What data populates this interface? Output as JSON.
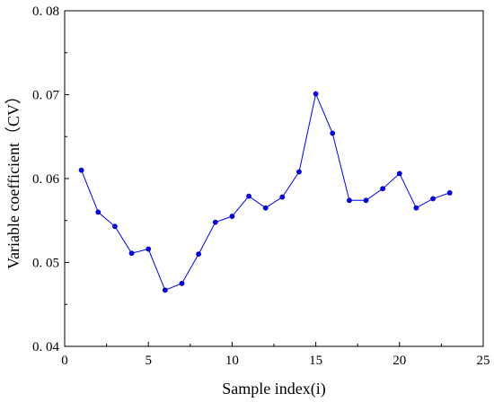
{
  "chart_data": {
    "type": "line",
    "title": "",
    "xlabel": "Sample index(i)",
    "ylabel": "Variable coefficient（CV）",
    "xlim": [
      0,
      25
    ],
    "ylim": [
      0.04,
      0.08
    ],
    "xticks": [
      0,
      5,
      10,
      15,
      20,
      25
    ],
    "xtick_labels": [
      "0",
      "5",
      "10",
      "15",
      "20",
      "25"
    ],
    "yticks": [
      0.04,
      0.05,
      0.06,
      0.07,
      0.08
    ],
    "ytick_labels": [
      "0. 04",
      "0. 05",
      "0. 06",
      "0. 07",
      "0. 08"
    ],
    "grid": false,
    "legend": "none",
    "series": [
      {
        "color": "#0000ff",
        "marker": "circle",
        "x": [
          1,
          2,
          3,
          4,
          5,
          6,
          7,
          8,
          9,
          10,
          11,
          12,
          13,
          14,
          15,
          16,
          17,
          18,
          19,
          20,
          21,
          22,
          23
        ],
        "values": [
          0.061,
          0.056,
          0.0543,
          0.0511,
          0.0516,
          0.0467,
          0.0475,
          0.051,
          0.0548,
          0.0555,
          0.0579,
          0.0565,
          0.0578,
          0.0608,
          0.0701,
          0.0654,
          0.0574,
          0.0574,
          0.0588,
          0.0606,
          0.0565,
          0.0576,
          0.0583
        ]
      }
    ]
  }
}
